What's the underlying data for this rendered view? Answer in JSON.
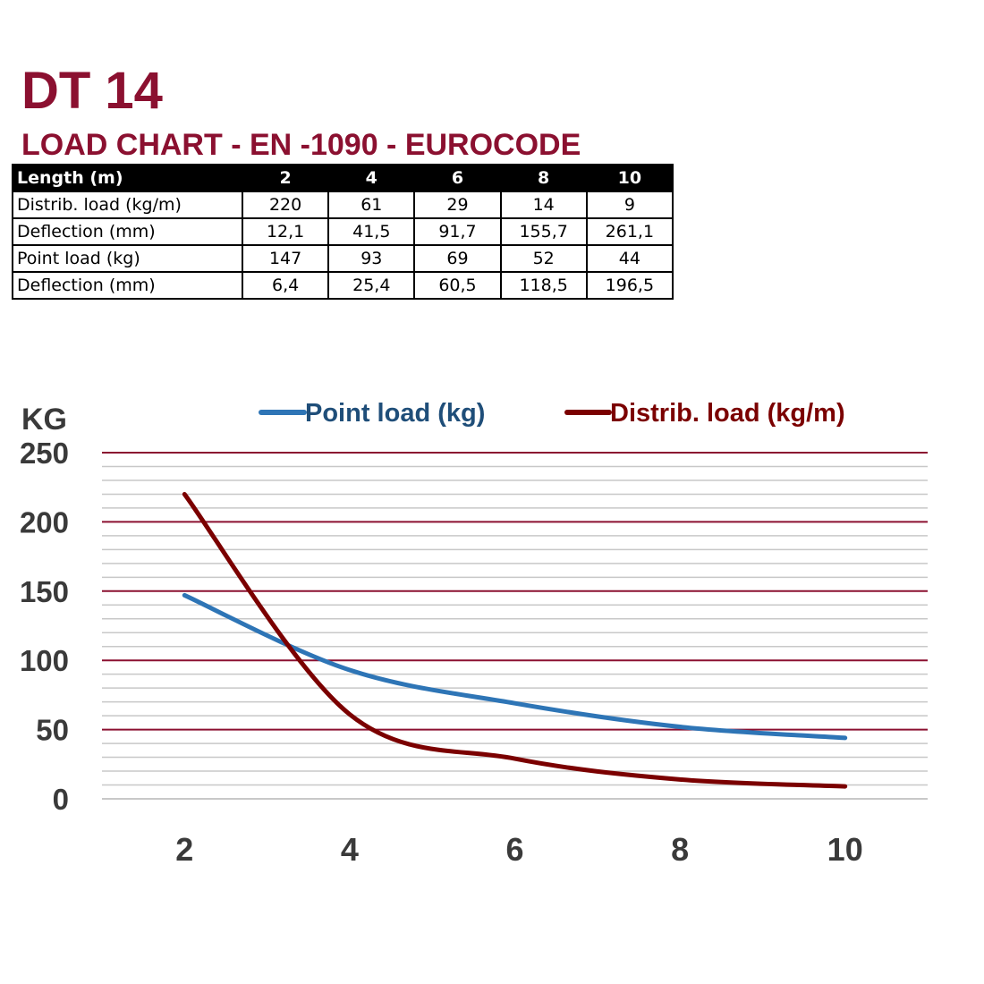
{
  "title": "DT 14",
  "subtitle": "LOAD CHART - EN -1090 - EUROCODE",
  "table": {
    "header": [
      "Length (m)",
      "2",
      "4",
      "6",
      "8",
      "10"
    ],
    "rows": [
      [
        "Distrib. load (kg/m)",
        "220",
        "61",
        "29",
        "14",
        "9"
      ],
      [
        "Deflection (mm)",
        "12,1",
        "41,5",
        "91,7",
        "155,7",
        "261,1"
      ],
      [
        "Point load (kg)",
        "147",
        "93",
        "69",
        "52",
        "44"
      ],
      [
        "Deflection (mm)",
        "6,4",
        "25,4",
        "60,5",
        "118,5",
        "196,5"
      ]
    ]
  },
  "colors": {
    "title": "#8b1030",
    "point_load": "#2e75b6",
    "distrib_load": "#7b0000",
    "major_grid": "#8b1030",
    "minor_grid": "#c8c8c8",
    "tick_text": "#3a3a3a"
  },
  "chart_data": {
    "type": "line",
    "ylabel": "KG",
    "xlabel": "",
    "x": [
      2,
      4,
      6,
      8,
      10
    ],
    "xticks": [
      "2",
      "4",
      "6",
      "8",
      "10"
    ],
    "xlim": [
      1,
      11
    ],
    "ylim": [
      0,
      250
    ],
    "yticks": [
      "0",
      "50",
      "100",
      "150",
      "200",
      "250"
    ],
    "minor_grid_step": 10,
    "legend_position": "top",
    "series": [
      {
        "name": "Point load (kg)",
        "values": [
          147,
          93,
          69,
          52,
          44
        ],
        "color": "#2e75b6"
      },
      {
        "name": "Distrib. load (kg/m)",
        "values": [
          220,
          61,
          29,
          14,
          9
        ],
        "color": "#7b0000"
      }
    ]
  }
}
